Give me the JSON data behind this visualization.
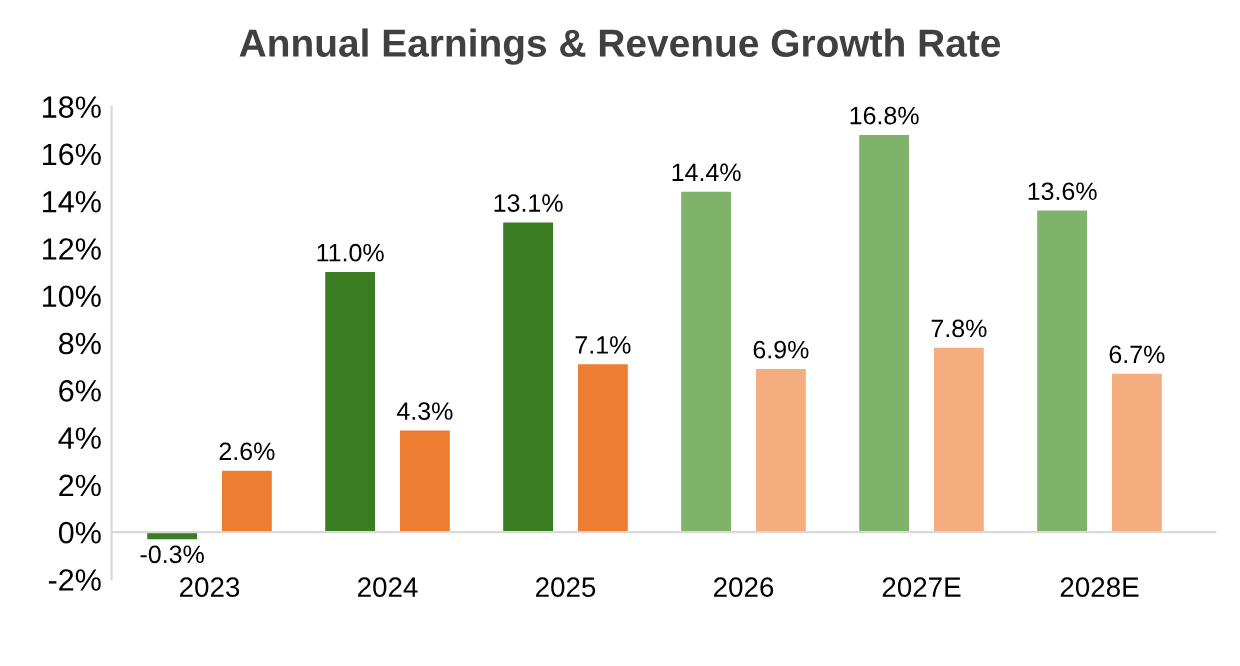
{
  "chart_data": {
    "type": "bar",
    "title": "Annual Earnings & Revenue Growth Rate",
    "categories": [
      "2023",
      "2024",
      "2025",
      "2026",
      "2027E",
      "2028E"
    ],
    "series": [
      {
        "colors": [
          "#3b7d23",
          "#3b7d23",
          "#3b7d23",
          "#7fb36a",
          "#7fb36a",
          "#7fb36a"
        ],
        "values": [
          -0.3,
          11.0,
          13.1,
          14.4,
          16.8,
          13.6
        ],
        "value_labels": [
          "-0.3%",
          "11.0%",
          "13.1%",
          "14.4%",
          "16.8%",
          "13.6%"
        ]
      },
      {
        "colors": [
          "#ed7d31",
          "#ed7d31",
          "#ed7d31",
          "#f4ad7e",
          "#f4ad7e",
          "#f4ad7e"
        ],
        "values": [
          2.6,
          4.3,
          7.1,
          6.9,
          7.8,
          6.7
        ],
        "value_labels": [
          "2.6%",
          "4.3%",
          "7.1%",
          "6.9%",
          "7.8%",
          "6.7%"
        ]
      }
    ],
    "ylim": [
      -2,
      18
    ],
    "yticks": [
      {
        "value": -2,
        "label": "-2%"
      },
      {
        "value": 0,
        "label": "0%"
      },
      {
        "value": 2,
        "label": "2%"
      },
      {
        "value": 4,
        "label": "4%"
      },
      {
        "value": 6,
        "label": "6%"
      },
      {
        "value": 8,
        "label": "8%"
      },
      {
        "value": 10,
        "label": "10%"
      },
      {
        "value": 12,
        "label": "12%"
      },
      {
        "value": 14,
        "label": "14%"
      },
      {
        "value": 16,
        "label": "16%"
      },
      {
        "value": 18,
        "label": "18%"
      }
    ],
    "grid": false
  }
}
